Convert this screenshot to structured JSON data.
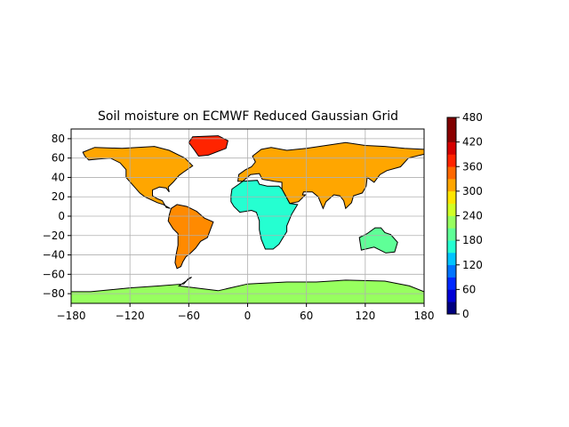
{
  "chart_data": {
    "type": "heatmap",
    "title": "Soil moisture on ECMWF Reduced Gaussian Grid",
    "xlabel": "",
    "ylabel": "",
    "xlim": [
      -180,
      180
    ],
    "ylim": [
      -90,
      90
    ],
    "xticks": [
      -180,
      -120,
      -60,
      0,
      60,
      120,
      180
    ],
    "yticks": [
      -80,
      -60,
      -40,
      -20,
      0,
      20,
      40,
      60,
      80
    ],
    "grid": true,
    "colorbar": {
      "min": 0,
      "max": 480,
      "step": 30,
      "ticks": [
        0,
        60,
        120,
        180,
        240,
        300,
        360,
        420,
        480
      ],
      "colors": [
        "#00007f",
        "#0000d5",
        "#0028ff",
        "#0074ff",
        "#00c4ff",
        "#25ffd1",
        "#5fff97",
        "#97ff5f",
        "#d1ff25",
        "#ffe600",
        "#ffa600",
        "#ff6800",
        "#ff2400",
        "#d50000",
        "#8b0000",
        "#7f0000"
      ]
    },
    "ocean_color": "#ffffff",
    "coastline_color": "#000000"
  }
}
